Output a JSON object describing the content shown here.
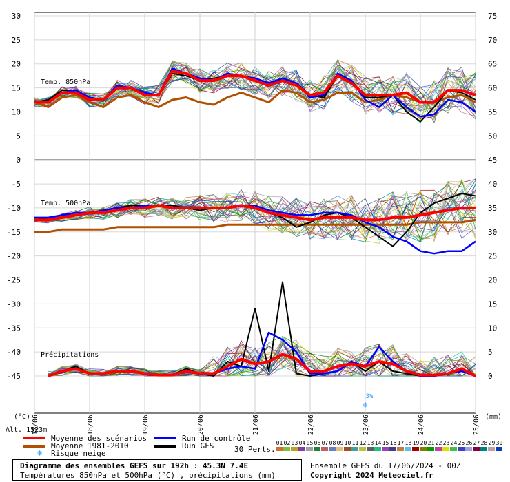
{
  "chart_data": {
    "type": "line",
    "title": "Diagramme des ensembles GEFS sur 192h : 45.3N 7.4E",
    "subtitle": "Températures 850hPa et 500hPa (°C) , précipitations (mm)",
    "left_unit": "(°C)",
    "right_unit": "(mm)",
    "altitude_label": "Alt. 1523m",
    "x_ticks": [
      "17/06",
      "18/06",
      "19/06",
      "20/06",
      "21/06",
      "22/06",
      "23/06",
      "24/06",
      "25/06"
    ],
    "x_hours": [
      0,
      24,
      48,
      72,
      96,
      120,
      144,
      168,
      192
    ],
    "left_ticks": [
      30,
      25,
      20,
      15,
      10,
      5,
      0,
      -5,
      -10,
      -15,
      -20,
      -25,
      -30,
      -35,
      -40,
      -45
    ],
    "right_ticks": [
      75,
      70,
      65,
      60,
      55,
      50,
      45,
      40,
      35,
      30,
      25,
      20,
      15,
      10,
      5,
      0
    ],
    "panels": [
      {
        "name": "Temp. 850hPa",
        "ylim": [
          0,
          30
        ]
      },
      {
        "name": "Temp. 500hPa",
        "ylim": [
          -22,
          -5
        ]
      },
      {
        "name": "Précipitations",
        "ylim": [
          0,
          20
        ]
      }
    ],
    "snow_risk_label": "3%",
    "snow_risk_hour": 144,
    "series_850": [
      {
        "name": "Moyenne des scénarios",
        "color": "#ff0000",
        "hours": [
          0,
          6,
          12,
          18,
          24,
          30,
          36,
          42,
          48,
          54,
          60,
          66,
          72,
          78,
          84,
          90,
          96,
          102,
          108,
          114,
          120,
          126,
          132,
          138,
          144,
          150,
          156,
          162,
          168,
          174,
          180,
          186,
          192
        ],
        "values": [
          12,
          12,
          14,
          14,
          12.5,
          12.5,
          15,
          15,
          13.5,
          13.5,
          18.5,
          18,
          16.5,
          16.5,
          17.5,
          17.5,
          16.5,
          15.5,
          16.5,
          15.5,
          13.5,
          14,
          17.5,
          16,
          13.5,
          13.5,
          13.5,
          14,
          12,
          12,
          14.5,
          14.5,
          13.5
        ]
      },
      {
        "name": "Moyenne 1981-2010",
        "color": "#b05000",
        "hours": [
          0,
          6,
          12,
          18,
          24,
          30,
          36,
          42,
          48,
          54,
          60,
          66,
          72,
          78,
          84,
          90,
          96,
          102,
          108,
          114,
          120,
          126,
          132,
          138,
          144,
          150,
          156,
          162,
          168,
          174,
          180,
          186,
          192
        ],
        "values": [
          12,
          11,
          13,
          13.5,
          12,
          11,
          13,
          13.5,
          12,
          11,
          12.5,
          13,
          12,
          11.5,
          13,
          14,
          13,
          12,
          14.5,
          14,
          12,
          12.5,
          14,
          14,
          12,
          12.5,
          13.5,
          13,
          12,
          12,
          13,
          13.5,
          12
        ]
      },
      {
        "name": "Run de contrôle",
        "color": "#0000ff",
        "hours": [
          0,
          6,
          12,
          18,
          24,
          30,
          36,
          42,
          48,
          54,
          60,
          66,
          72,
          78,
          84,
          90,
          96,
          102,
          108,
          114,
          120,
          126,
          132,
          138,
          144,
          150,
          156,
          162,
          168,
          174,
          180,
          186,
          192
        ],
        "values": [
          12,
          12,
          14,
          14.5,
          13,
          12.5,
          15.5,
          15,
          14,
          13.5,
          19,
          18,
          17,
          16.5,
          18,
          17.5,
          17,
          16,
          17,
          16,
          13,
          13.5,
          18,
          16.5,
          12.5,
          11,
          13.5,
          11,
          9,
          9.5,
          12.5,
          12,
          10
        ]
      },
      {
        "name": "Run GFS",
        "color": "#000000",
        "hours": [
          0,
          6,
          12,
          18,
          24,
          30,
          36,
          42,
          48,
          54,
          60,
          66,
          72,
          78,
          84,
          90,
          96,
          102,
          108,
          114,
          120,
          126,
          132,
          138,
          144,
          150,
          156,
          162,
          168,
          174,
          180,
          186,
          192
        ],
        "values": [
          12,
          12.5,
          14.5,
          14.5,
          13,
          12.5,
          15.5,
          15,
          13.5,
          13.5,
          18,
          17.5,
          16.5,
          17,
          17.5,
          17.5,
          16.5,
          15.5,
          17,
          16,
          13.5,
          13,
          17.5,
          16.5,
          13,
          13,
          13.5,
          10,
          8,
          11,
          14.5,
          14,
          12.5
        ]
      }
    ],
    "series_500": [
      {
        "name": "Moyenne des scénarios",
        "color": "#ff0000",
        "hours": [
          0,
          6,
          12,
          18,
          24,
          30,
          36,
          42,
          48,
          54,
          60,
          66,
          72,
          78,
          84,
          90,
          96,
          102,
          108,
          114,
          120,
          126,
          132,
          138,
          144,
          150,
          156,
          162,
          168,
          174,
          180,
          186,
          192
        ],
        "values": [
          -12.5,
          -12.5,
          -12,
          -11.5,
          -11,
          -11,
          -10.5,
          -10,
          -10,
          -9.5,
          -10,
          -10,
          -10,
          -10,
          -10,
          -9.5,
          -10,
          -11,
          -11.5,
          -12,
          -12.5,
          -12,
          -12,
          -12,
          -12.5,
          -12.5,
          -12,
          -12,
          -11.5,
          -11,
          -10.5,
          -10,
          -10
        ]
      },
      {
        "name": "Moyenne 1981-2010",
        "color": "#b05000",
        "hours": [
          0,
          6,
          12,
          18,
          24,
          30,
          36,
          42,
          48,
          54,
          60,
          66,
          72,
          78,
          84,
          90,
          96,
          102,
          108,
          114,
          120,
          126,
          132,
          138,
          144,
          150,
          156,
          162,
          168,
          174,
          180,
          186,
          192
        ],
        "values": [
          -15,
          -15,
          -14.5,
          -14.5,
          -14.5,
          -14.5,
          -14,
          -14,
          -14,
          -14,
          -14,
          -14,
          -14,
          -14,
          -13.5,
          -13.5,
          -13.5,
          -13.5,
          -13.5,
          -13.5,
          -13.5,
          -13.5,
          -13.5,
          -13.5,
          -13.5,
          -13.5,
          -13.5,
          -13.5,
          -13,
          -13,
          -13,
          -13,
          -12.5
        ]
      },
      {
        "name": "Run de contrôle",
        "color": "#0000ff",
        "hours": [
          0,
          6,
          12,
          18,
          24,
          30,
          36,
          42,
          48,
          54,
          60,
          66,
          72,
          78,
          84,
          90,
          96,
          102,
          108,
          114,
          120,
          126,
          132,
          138,
          144,
          150,
          156,
          162,
          168,
          174,
          180,
          186,
          192
        ],
        "values": [
          -12,
          -12,
          -11.5,
          -11,
          -11,
          -10.5,
          -10,
          -10,
          -9.5,
          -9.5,
          -10,
          -10,
          -10,
          -10,
          -10,
          -9.5,
          -9.5,
          -10.5,
          -11,
          -11.5,
          -11.5,
          -11,
          -11,
          -11.5,
          -13,
          -14,
          -16,
          -17,
          -19,
          -19.5,
          -19,
          -19,
          -17
        ]
      },
      {
        "name": "Run GFS",
        "color": "#000000",
        "hours": [
          0,
          6,
          12,
          18,
          24,
          30,
          36,
          42,
          48,
          54,
          60,
          66,
          72,
          78,
          84,
          90,
          96,
          102,
          108,
          114,
          120,
          126,
          132,
          138,
          144,
          150,
          156,
          162,
          168,
          174,
          180,
          186,
          192
        ],
        "values": [
          -12.5,
          -12,
          -11.5,
          -11,
          -11,
          -10.5,
          -10,
          -9.5,
          -9.5,
          -9.5,
          -9.5,
          -10,
          -10.5,
          -10,
          -10,
          -9.5,
          -10,
          -11,
          -12,
          -14,
          -13,
          -11.5,
          -11,
          -12,
          -14,
          -16,
          -18,
          -15,
          -11,
          -9,
          -8,
          -7,
          -7.5
        ]
      }
    ],
    "series_precip": [
      {
        "name": "Moyenne des scénarios",
        "color": "#ff0000",
        "hours": [
          6,
          12,
          18,
          24,
          30,
          36,
          42,
          48,
          54,
          60,
          66,
          72,
          78,
          84,
          90,
          96,
          102,
          108,
          114,
          120,
          126,
          132,
          138,
          144,
          150,
          156,
          162,
          168,
          174,
          180,
          186,
          192
        ],
        "values": [
          0,
          1,
          1.5,
          0.5,
          0.5,
          1,
          1,
          0.5,
          0.2,
          0.2,
          1,
          0.5,
          0.5,
          2,
          3.5,
          2.5,
          3,
          4.5,
          3.5,
          1,
          1,
          2,
          2.5,
          2,
          3,
          2.5,
          1,
          0.2,
          0.2,
          0.5,
          1.5,
          0
        ]
      },
      {
        "name": "Run de contrôle",
        "color": "#0000ff",
        "hours": [
          6,
          12,
          18,
          24,
          30,
          36,
          42,
          48,
          54,
          60,
          66,
          72,
          78,
          84,
          90,
          96,
          102,
          108,
          114,
          120,
          126,
          132,
          138,
          144,
          150,
          156,
          162,
          168,
          174,
          180,
          186,
          192
        ],
        "values": [
          0,
          1,
          1.5,
          0.5,
          0.5,
          1,
          1,
          0.5,
          0.3,
          0.2,
          1,
          0.5,
          0.5,
          1.5,
          2,
          1.5,
          9,
          7.5,
          5,
          0.5,
          0.5,
          1,
          3,
          2,
          6,
          3,
          1,
          0,
          0,
          0.5,
          1,
          0
        ]
      },
      {
        "name": "Run GFS",
        "color": "#000000",
        "hours": [
          6,
          12,
          18,
          24,
          30,
          36,
          42,
          48,
          54,
          60,
          66,
          72,
          78,
          84,
          90,
          96,
          102,
          108,
          114,
          120,
          126,
          132,
          138,
          144,
          150,
          156,
          162,
          168,
          174,
          180,
          186,
          192
        ],
        "values": [
          0,
          1,
          2,
          0.5,
          0.5,
          1,
          1,
          0.5,
          0.3,
          0.2,
          1.5,
          0.5,
          0,
          3,
          2,
          14,
          1,
          19.5,
          0.5,
          0,
          0.5,
          1,
          3,
          1,
          3,
          1,
          0.5,
          0,
          0,
          0.5,
          1,
          0
        ]
      }
    ],
    "members_850_n": 30,
    "legend_position": "bottom-left"
  },
  "legend": {
    "mean": "Moyenne des scénarios",
    "climo": "Moyenne 1981-2010",
    "snow": "Risque neige",
    "control": "Run de contrôle",
    "gfs": "Run GFS",
    "perts_label": "30 Perts.",
    "perts_numbers": [
      "01",
      "02",
      "03",
      "04",
      "05",
      "06",
      "07",
      "08",
      "09",
      "10",
      "11",
      "12",
      "13",
      "14",
      "15",
      "16",
      "17",
      "18",
      "19",
      "20",
      "21",
      "22",
      "23",
      "24",
      "25",
      "26",
      "27",
      "28",
      "29",
      "30"
    ],
    "perts_colors": [
      "#d07030",
      "#80c040",
      "#c0a020",
      "#8040a0",
      "#a0a0a0",
      "#208040",
      "#c06060",
      "#6080c0",
      "#e0c080",
      "#a05020",
      "#40a0a0",
      "#c0c040",
      "#606060",
      "#20c080",
      "#a040c0",
      "#404080",
      "#c08040",
      "#60c0e0",
      "#a00000",
      "#808000",
      "#00a000",
      "#c040a0",
      "#e0e000",
      "#40c040",
      "#4040c0",
      "#a0a0e0",
      "#800040",
      "#008080",
      "#c0a0a0",
      "#0040c0"
    ]
  },
  "footer": {
    "run_info": "Ensemble GEFS du 17/06/2024 - 00Z",
    "copyright": "Copyright 2024 Meteociel.fr"
  }
}
